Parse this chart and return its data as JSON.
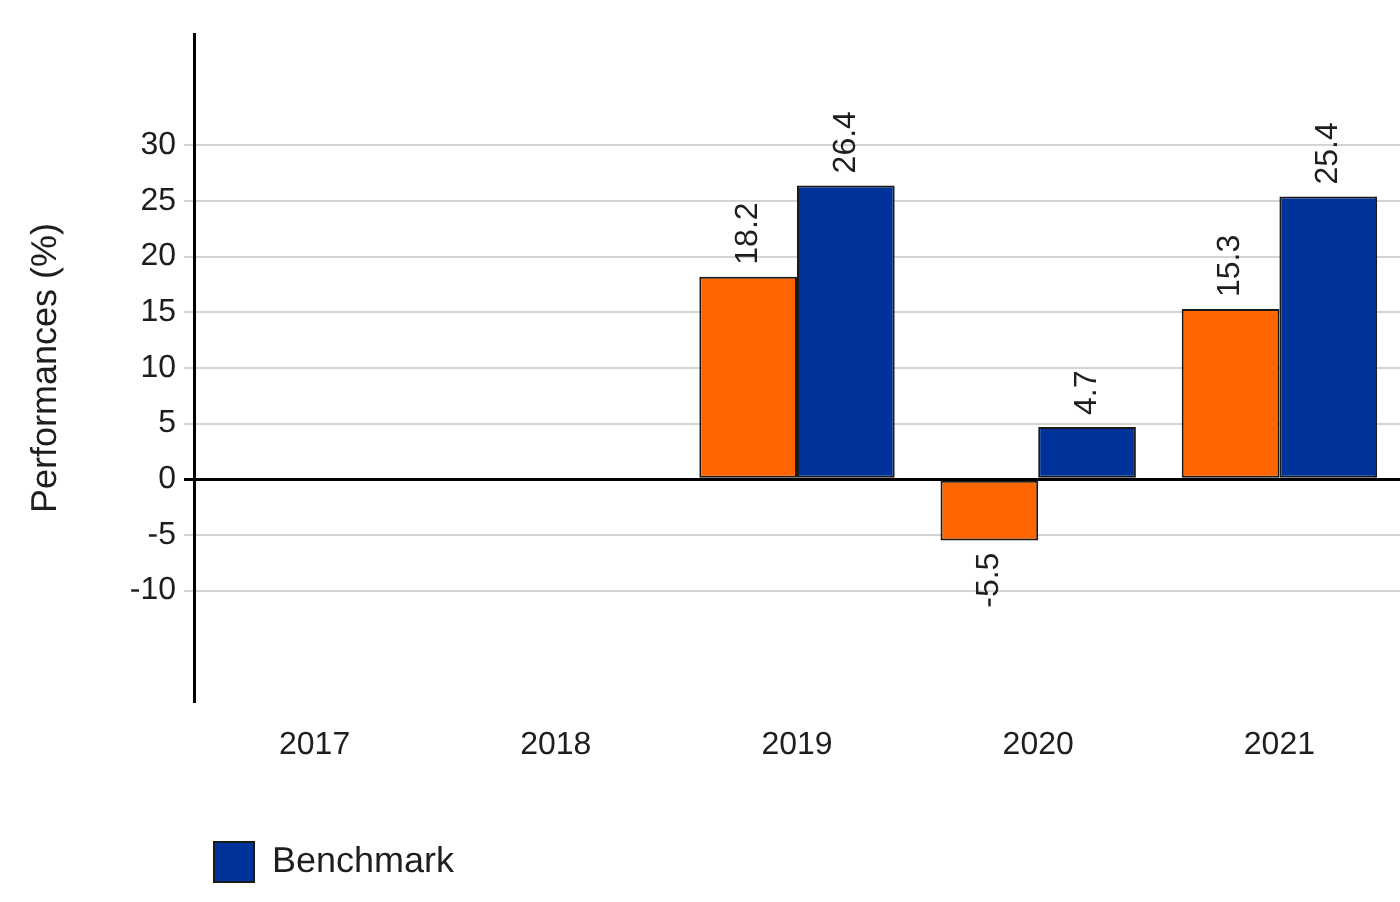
{
  "chart_data": {
    "type": "bar",
    "ylabel": "Performances (%)",
    "categories": [
      "2017",
      "2018",
      "2019",
      "2020",
      "2021"
    ],
    "series": [
      {
        "color": "#ff6600",
        "values": [
          null,
          null,
          18.2,
          -5.5,
          15.3
        ]
      },
      {
        "name": "Benchmark",
        "color": "#003399",
        "values": [
          null,
          null,
          26.4,
          4.7,
          25.4
        ]
      }
    ],
    "ylim": [
      -20,
      40
    ],
    "yticks": [
      -10,
      -5,
      0,
      5,
      10,
      15,
      20,
      25,
      30
    ],
    "grid": "y",
    "legend": "bottom left",
    "data_labels": true
  }
}
